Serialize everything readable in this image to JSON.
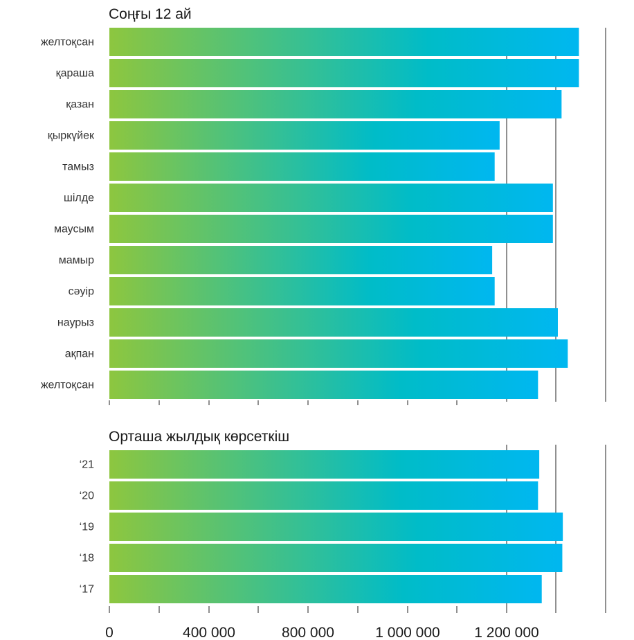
{
  "chart_data": [
    {
      "type": "bar",
      "orientation": "horizontal",
      "title": "Соңғы 12 ай",
      "categories": [
        "желтоқсан",
        "қараша",
        "қазан",
        "қыркүйек",
        "тамыз",
        "шілде",
        "маусым",
        "мамыр",
        "сәуір",
        "наурыз",
        "ақпан",
        "желтоқсан"
      ],
      "values": [
        1895000,
        1895000,
        1825000,
        1575000,
        1555000,
        1790000,
        1790000,
        1545000,
        1555000,
        1810000,
        1850000,
        1730000
      ],
      "xlim": [
        0,
        2000000
      ],
      "grid": true
    },
    {
      "type": "bar",
      "orientation": "horizontal",
      "title": "Орташа жылдық көрсеткіш",
      "categories": [
        "‘21",
        "‘20",
        "‘19",
        "‘18",
        "‘17"
      ],
      "values": [
        1735000,
        1730000,
        1830000,
        1828000,
        1745000
      ],
      "xlim": [
        0,
        2000000
      ],
      "xticks": [
        "0",
        "400 000",
        "800 000",
        "1 000 000",
        "1 200 000"
      ],
      "grid": true
    }
  ],
  "colors": {
    "gradient_start": "#8dc63f",
    "gradient_mid": "#00bcc8",
    "gradient_end": "#00b7f0"
  }
}
